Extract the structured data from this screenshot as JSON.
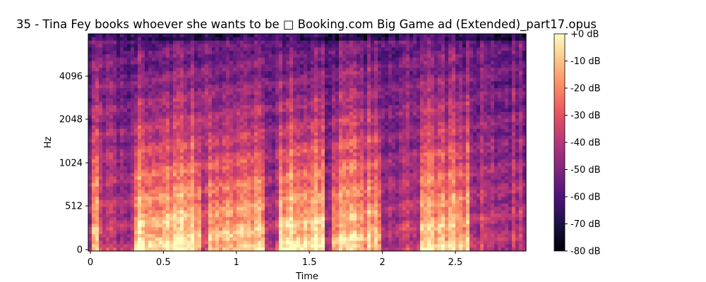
{
  "chart_data": {
    "type": "heatmap",
    "title": "35 - Tina Fey books whoever she wants to be □ Booking.com Big Game ad (Extended)_part17.opus",
    "xlabel": "Time",
    "ylabel": "Hz",
    "x_unit": "s",
    "xlim": [
      0,
      3.0
    ],
    "x_ticks": [
      {
        "value": 0,
        "label": "0"
      },
      {
        "value": 0.5,
        "label": "0.5"
      },
      {
        "value": 1,
        "label": "1"
      },
      {
        "value": 1.5,
        "label": "1.5"
      },
      {
        "value": 2,
        "label": "2"
      },
      {
        "value": 2.5,
        "label": "2.5"
      }
    ],
    "y_scale": "log-like (mel)",
    "y_ticks": [
      {
        "value": 0,
        "label": "0"
      },
      {
        "value": 512,
        "label": "512"
      },
      {
        "value": 1024,
        "label": "1024"
      },
      {
        "value": 2048,
        "label": "2048"
      },
      {
        "value": 4096,
        "label": "4096"
      }
    ],
    "colormap": "magma",
    "colorbar": {
      "range_db": [
        -80,
        0
      ],
      "ticks": [
        {
          "value": 0,
          "label": "+0 dB"
        },
        {
          "value": -10,
          "label": "-10 dB"
        },
        {
          "value": -20,
          "label": "-20 dB"
        },
        {
          "value": -30,
          "label": "-30 dB"
        },
        {
          "value": -40,
          "label": "-40 dB"
        },
        {
          "value": -50,
          "label": "-50 dB"
        },
        {
          "value": -60,
          "label": "-60 dB"
        },
        {
          "value": -70,
          "label": "-70 dB"
        },
        {
          "value": -80,
          "label": "-80 dB"
        }
      ]
    },
    "grid": false,
    "energy_events": [
      {
        "t_start": 0.0,
        "t_end": 0.05,
        "level_db": -25
      },
      {
        "t_start": 0.3,
        "t_end": 0.75,
        "level_db": -8
      },
      {
        "t_start": 0.8,
        "t_end": 1.2,
        "level_db": -15
      },
      {
        "t_start": 1.3,
        "t_end": 1.6,
        "level_db": -5
      },
      {
        "t_start": 1.65,
        "t_end": 2.0,
        "level_db": -20
      },
      {
        "t_start": 2.25,
        "t_end": 2.6,
        "level_db": -18
      }
    ]
  }
}
